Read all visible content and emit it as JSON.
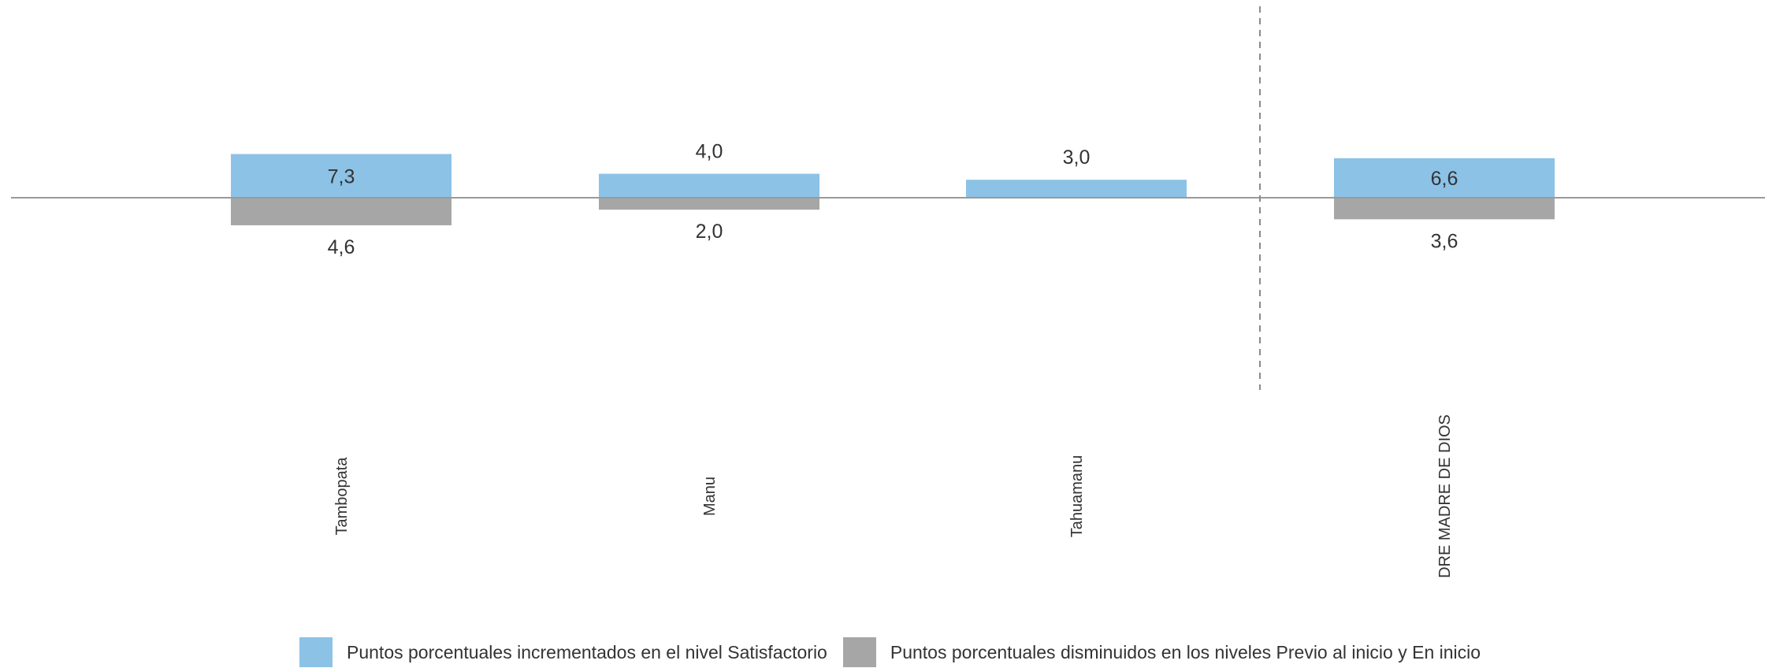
{
  "chart_data": {
    "type": "bar",
    "categories": [
      "Tambopata",
      "Manu",
      "Tahuamanu",
      "DRE MADRE DE DIOS"
    ],
    "series": [
      {
        "name": "Puntos porcentuales incrementados en el nivel Satisfactorio",
        "values": [
          7.3,
          4.0,
          3.0,
          6.6
        ],
        "labels": [
          "7,3",
          "4,0",
          "3,0",
          "6,6"
        ],
        "direction": "up",
        "color": "#8cc2e6"
      },
      {
        "name": "Puntos porcentuales disminuidos en los niveles Previo al inicio y En inicio",
        "values": [
          4.6,
          2.0,
          0,
          3.6
        ],
        "labels": [
          "4,6",
          "2,0",
          "",
          "3,6"
        ],
        "direction": "down",
        "color": "#a6a6a6"
      }
    ],
    "separator_before_category": 3,
    "title": "",
    "xlabel": "",
    "ylabel": "",
    "grid": false,
    "legend_position": "bottom"
  }
}
